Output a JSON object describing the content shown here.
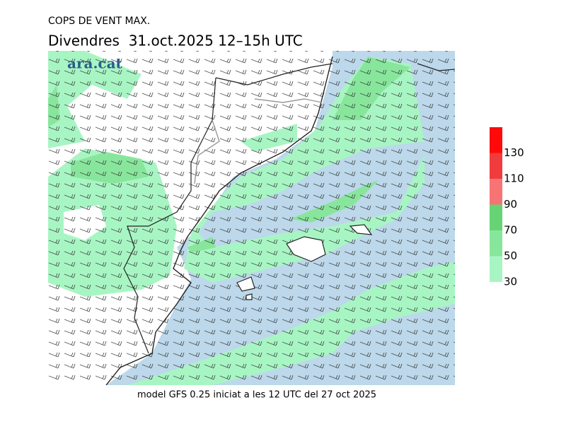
{
  "header": {
    "title": "COPS DE VENT MAX.",
    "subtitle": "Divendres  31.oct.2025 12–15h UTC"
  },
  "logo": "ara.cat",
  "footer": "model GFS 0.25 iniciat a les 12 UTC del 27 oct 2025",
  "colorbar": {
    "ticks": [
      30,
      50,
      70,
      90,
      110,
      130
    ],
    "colors": [
      "#a8f5c4",
      "#88e69c",
      "#66d474",
      "#f87474",
      "#f03c3c",
      "#ff0a0a"
    ]
  }
}
